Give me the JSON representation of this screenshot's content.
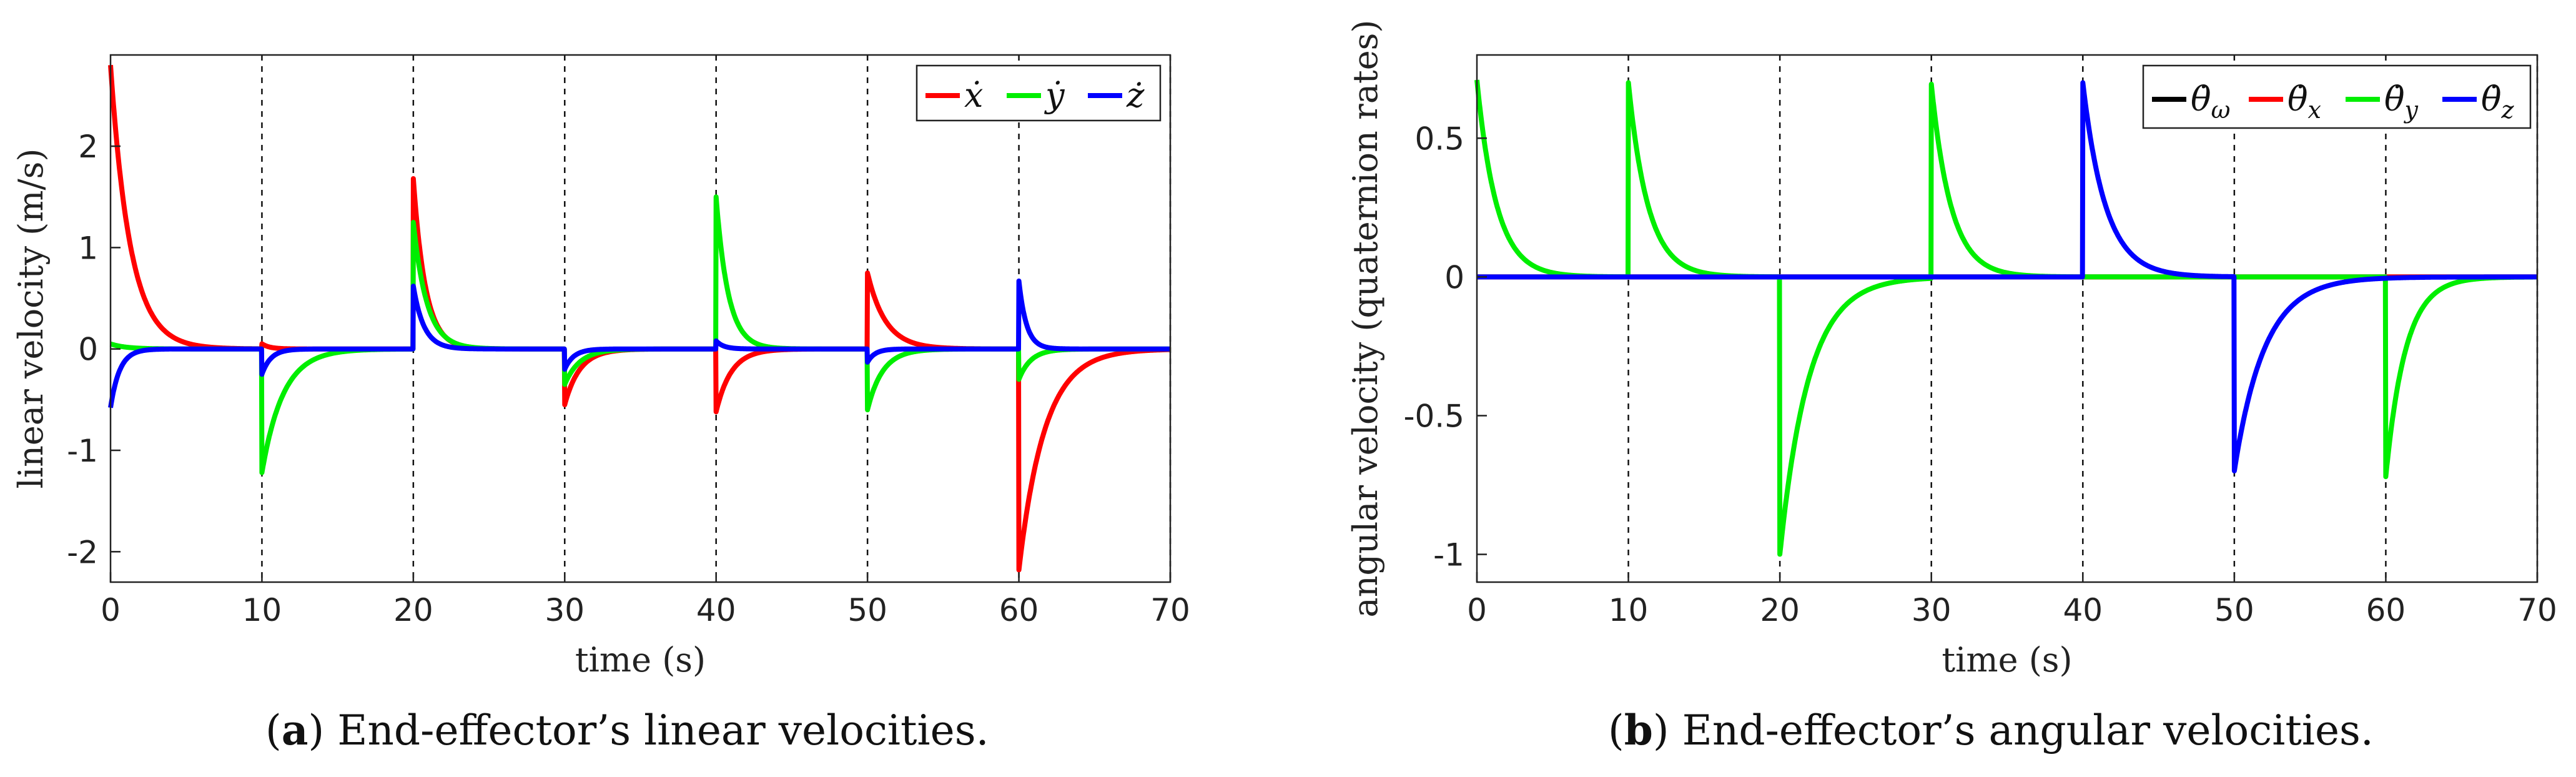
{
  "captions": [
    {
      "tag": "a",
      "text": "End-effector’s linear velocities.",
      "open": "(",
      "close": ")"
    },
    {
      "tag": "b",
      "text": "End-effector’s angular velocities.",
      "open": "(",
      "close": ")"
    }
  ],
  "chart_data": [
    {
      "type": "line",
      "title": "",
      "xlabel": "time (s)",
      "ylabel": "linear velocity (m/s)",
      "xlim": [
        0,
        70
      ],
      "ylim": [
        -2.3,
        2.9
      ],
      "xticks": [
        "0",
        "10",
        "20",
        "30",
        "40",
        "50",
        "60",
        "70"
      ],
      "yticks": [
        "-2",
        "-1",
        "0",
        "1",
        "2"
      ],
      "vlines": [
        10,
        20,
        30,
        40,
        50,
        60,
        70
      ],
      "legend_position": "top-right",
      "series": [
        {
          "name": "ẋ",
          "color": "#ff0000",
          "pulses": [
            [
              0,
              2.8,
              1.3
            ],
            [
              10,
              0.05,
              0.5
            ],
            [
              20,
              1.68,
              0.8
            ],
            [
              30,
              -0.55,
              1.0
            ],
            [
              40,
              -0.62,
              1.0
            ],
            [
              50,
              0.75,
              1.2
            ],
            [
              60,
              -2.18,
              1.7
            ]
          ]
        },
        {
          "name": "ẏ",
          "color": "#00ee00",
          "pulses": [
            [
              0,
              0.05,
              1.0
            ],
            [
              10,
              -1.22,
              1.4
            ],
            [
              20,
              1.25,
              0.9
            ],
            [
              30,
              -0.35,
              1.0
            ],
            [
              40,
              1.5,
              0.8
            ],
            [
              50,
              -0.6,
              1.0
            ],
            [
              60,
              -0.3,
              0.8
            ]
          ]
        },
        {
          "name": "ż",
          "color": "#0000ff",
          "pulses": [
            [
              0,
              -0.58,
              0.6
            ],
            [
              10,
              -0.25,
              0.6
            ],
            [
              20,
              0.62,
              0.7
            ],
            [
              30,
              -0.2,
              0.6
            ],
            [
              40,
              0.08,
              0.5
            ],
            [
              50,
              -0.13,
              0.5
            ],
            [
              60,
              0.67,
              0.5
            ]
          ]
        }
      ]
    },
    {
      "type": "line",
      "title": "",
      "xlabel": "time (s)",
      "ylabel": "angular velocity (quaternion rates)",
      "xlim": [
        0,
        70
      ],
      "ylim": [
        -1.1,
        0.8
      ],
      "xticks": [
        "0",
        "10",
        "20",
        "30",
        "40",
        "50",
        "60",
        "70"
      ],
      "yticks": [
        "-1",
        "-0.5",
        "0",
        "0.5"
      ],
      "vlines": [
        10,
        20,
        30,
        40,
        50,
        60,
        70
      ],
      "legend_position": "top-right",
      "series": [
        {
          "name": "θ̇ω",
          "base": "θ̇",
          "sub": "ω",
          "color": "#000000",
          "pulses": []
        },
        {
          "name": "θ̇x",
          "base": "θ̇",
          "sub": "x",
          "color": "#ff0000",
          "pulses": []
        },
        {
          "name": "θ̇y",
          "base": "θ̇",
          "sub": "y",
          "color": "#00ee00",
          "pulses": [
            [
              0,
              0.71,
              1.3
            ],
            [
              10,
              0.7,
              1.3
            ],
            [
              20,
              -1.0,
              1.9
            ],
            [
              30,
              0.7,
              1.3
            ],
            [
              60,
              -0.72,
              1.3
            ]
          ]
        },
        {
          "name": "θ̇z",
          "base": "θ̇",
          "sub": "z",
          "color": "#0000ff",
          "pulses": [
            [
              40,
              0.7,
              1.5
            ],
            [
              50,
              -0.7,
              2.0
            ]
          ]
        }
      ]
    }
  ]
}
